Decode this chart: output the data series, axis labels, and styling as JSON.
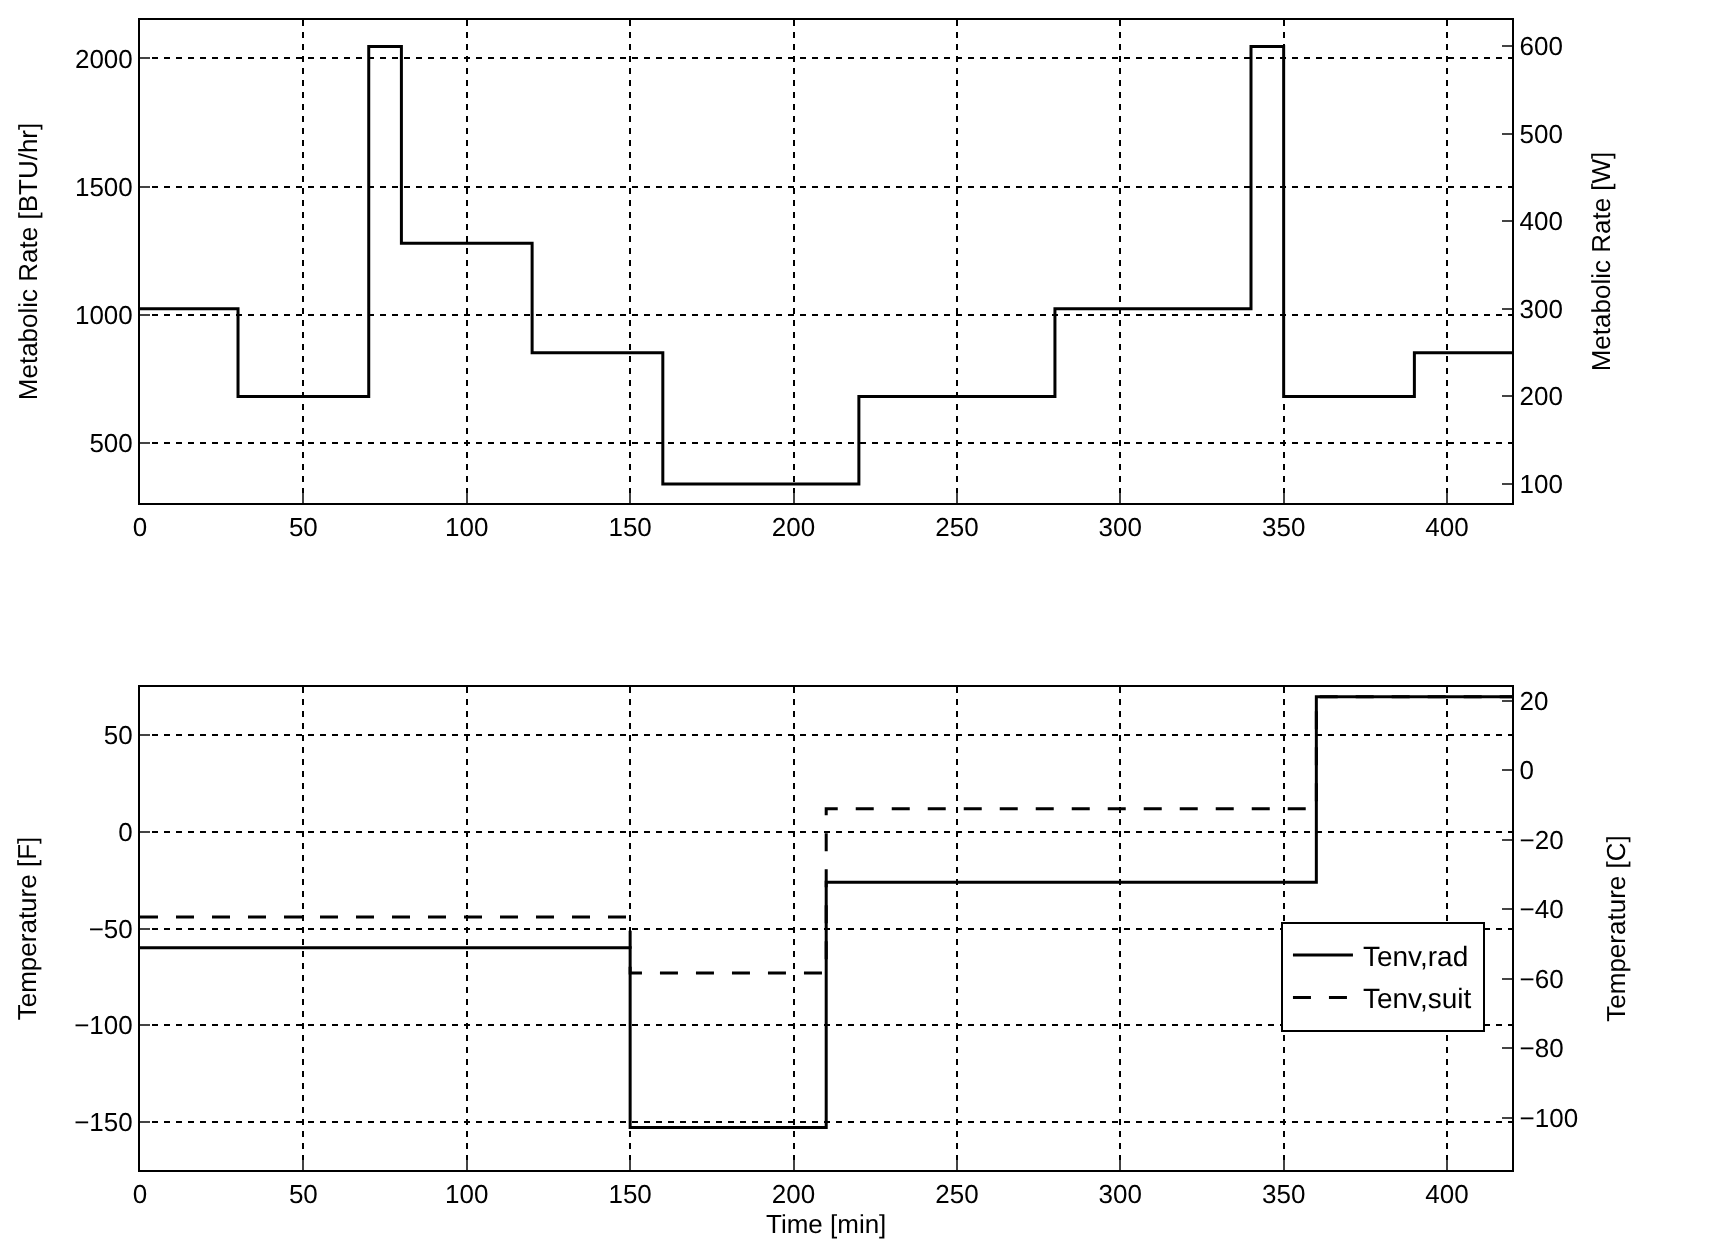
{
  "chart_data": [
    {
      "type": "step",
      "ylabel": "Metabolic Rate [BTU/hr]",
      "y2label": "Metabolic Rate [W]",
      "xlim": [
        0,
        420
      ],
      "xticks": [
        0,
        50,
        100,
        150,
        200,
        250,
        300,
        350,
        400
      ],
      "ylim": [
        267,
        2150
      ],
      "yticks": [
        500,
        1000,
        1500,
        2000
      ],
      "y2lim": [
        78,
        630
      ],
      "y2ticks": [
        100,
        200,
        300,
        400,
        500,
        600
      ],
      "grid": true,
      "series": [
        {
          "color": "#000000",
          "line_style": "solid",
          "x": [
            0,
            30,
            70,
            80,
            120,
            160,
            220,
            280,
            340,
            350,
            390,
            420
          ],
          "values": [
            1024,
            682,
            2047,
            1280,
            853,
            341,
            682,
            1024,
            2047,
            682,
            853,
            853
          ]
        }
      ]
    },
    {
      "type": "step",
      "xlabel": "Time [min]",
      "ylabel": "Temperature [F]",
      "y2label": "Temperature [C]",
      "xlim": [
        0,
        420
      ],
      "xticks": [
        0,
        50,
        100,
        150,
        200,
        250,
        300,
        350,
        400
      ],
      "ylim": [
        -175,
        75
      ],
      "yticks": [
        -150,
        -100,
        -50,
        0,
        50
      ],
      "y2lim": [
        -115,
        23.9
      ],
      "y2ticks": [
        -100,
        -80,
        -60,
        -40,
        -20,
        0,
        20
      ],
      "grid": true,
      "legend": "right",
      "series": [
        {
          "name": "Tenv,rad",
          "color": "#000000",
          "line_style": "solid",
          "x": [
            0,
            150,
            210,
            360,
            420
          ],
          "values": [
            -60,
            -153,
            -26,
            70,
            70
          ]
        },
        {
          "name": "Tenv,suit",
          "color": "#000000",
          "line_style": "dashed",
          "x": [
            0,
            150,
            210,
            360,
            420
          ],
          "values": [
            -44,
            -73,
            12,
            70,
            70
          ]
        }
      ]
    }
  ]
}
